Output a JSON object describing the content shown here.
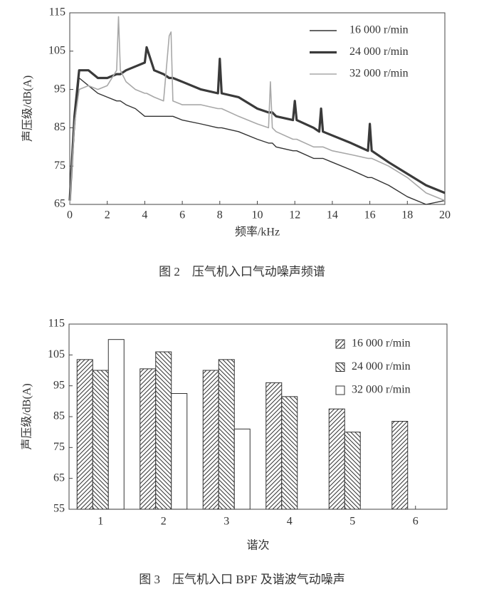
{
  "chart_data": [
    {
      "type": "line",
      "xlabel": "频率/kHz",
      "ylabel": "声压级/dB(A)",
      "caption": "图 2　压气机入口气动噪声频谱",
      "x": [
        0,
        0.25,
        0.5,
        1,
        1.5,
        2,
        2.5,
        2.6,
        2.7,
        3,
        3.5,
        4,
        4.1,
        4.5,
        5,
        5.3,
        5.4,
        5.5,
        6,
        7,
        7.9,
        8,
        8.1,
        9,
        10,
        10.6,
        10.7,
        10.8,
        11,
        11.9,
        12,
        12.1,
        13,
        13.3,
        13.4,
        13.5,
        14,
        15,
        15.9,
        16,
        16.1,
        17,
        18,
        19,
        20
      ],
      "series": [
        {
          "name": "16 000 r/min",
          "color": "#333333",
          "width": 1.4,
          "values": [
            65,
            85,
            98,
            96,
            94,
            93,
            92,
            92,
            92,
            91,
            90,
            88,
            88,
            88,
            88,
            88,
            88,
            88,
            87,
            86,
            85,
            85,
            85,
            84,
            82,
            81,
            81,
            81,
            80,
            79,
            79,
            79,
            77,
            77,
            77,
            77,
            76,
            74,
            72,
            72,
            72,
            70,
            67,
            65,
            66
          ]
        },
        {
          "name": "24 000 r/min",
          "color": "#3a3a3a",
          "width": 3.2,
          "values": [
            66,
            88,
            100,
            100,
            98,
            98,
            99,
            99,
            99,
            100,
            101,
            102,
            106,
            100,
            99,
            98,
            98,
            98,
            97,
            95,
            94,
            103,
            94,
            93,
            90,
            89,
            89,
            89,
            88,
            87,
            92,
            87,
            85,
            84,
            90,
            84,
            83,
            81,
            79,
            86,
            79,
            76,
            73,
            70,
            68
          ]
        },
        {
          "name": "32 000 r/min",
          "color": "#a8a8a8",
          "width": 1.6,
          "values": [
            65,
            86,
            95,
            96,
            95,
            96,
            100,
            114,
            100,
            97,
            95,
            94,
            94,
            93,
            92,
            109,
            110,
            92,
            91,
            91,
            90,
            90,
            90,
            88,
            86,
            85,
            97,
            85,
            84,
            82,
            82,
            82,
            80,
            80,
            80,
            80,
            79,
            78,
            77,
            77,
            77,
            75,
            72,
            68,
            66
          ]
        }
      ],
      "xlim": [
        0,
        20
      ],
      "xticks": [
        0,
        2,
        4,
        6,
        8,
        10,
        12,
        14,
        16,
        18,
        20
      ],
      "ylim": [
        65,
        115
      ],
      "yticks": [
        65,
        75,
        85,
        95,
        105,
        115
      ],
      "legend": "upper-right"
    },
    {
      "type": "bar",
      "xlabel": "谐次",
      "ylabel": "声压级/dB(A)",
      "caption": "图 3　压气机入口 BPF 及谐波气动噪声",
      "categories": [
        "1",
        "2",
        "3",
        "4",
        "5",
        "6"
      ],
      "series": [
        {
          "name": "16 000 r/min",
          "color": "#333333",
          "hatch": "forward",
          "values": [
            103.5,
            100.5,
            100,
            96,
            87.5,
            83.5
          ]
        },
        {
          "name": "24 000 r/min",
          "color": "#333333",
          "hatch": "back",
          "values": [
            100,
            106,
            103.5,
            91.5,
            80,
            null
          ]
        },
        {
          "name": "32 000 r/min",
          "color": "#333333",
          "hatch": "none",
          "values": [
            110,
            92.5,
            81,
            null,
            null,
            null
          ]
        }
      ],
      "ylim": [
        55,
        115
      ],
      "yticks": [
        55,
        65,
        75,
        85,
        95,
        105,
        115
      ],
      "legend": "upper-right"
    }
  ]
}
